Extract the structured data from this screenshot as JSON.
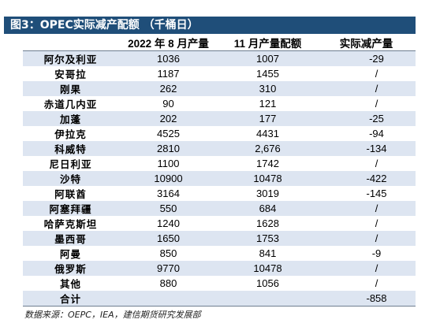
{
  "title": "图3：OPEC实际减产配额 （千桶日）",
  "table": {
    "headers": [
      "",
      "2022 年 8 月产量",
      "11 月产量配额",
      "实际减产量"
    ],
    "rows": [
      {
        "country": "阿尔及利亚",
        "aug2022": "1036",
        "nov_quota": "1007",
        "actual_cut": "-29"
      },
      {
        "country": "安哥拉",
        "aug2022": "1187",
        "nov_quota": "1455",
        "actual_cut": "/"
      },
      {
        "country": "刚果",
        "aug2022": "262",
        "nov_quota": "310",
        "actual_cut": "/"
      },
      {
        "country": "赤道几内亚",
        "aug2022": "90",
        "nov_quota": "121",
        "actual_cut": "/"
      },
      {
        "country": "加蓬",
        "aug2022": "202",
        "nov_quota": "177",
        "actual_cut": "-25"
      },
      {
        "country": "伊拉克",
        "aug2022": "4525",
        "nov_quota": "4431",
        "actual_cut": "-94"
      },
      {
        "country": "科威特",
        "aug2022": "2810",
        "nov_quota": "2,676",
        "actual_cut": "-134"
      },
      {
        "country": "尼日利亚",
        "aug2022": "1100",
        "nov_quota": "1742",
        "actual_cut": "/"
      },
      {
        "country": "沙特",
        "aug2022": "10900",
        "nov_quota": "10478",
        "actual_cut": "-422"
      },
      {
        "country": "阿联酋",
        "aug2022": "3164",
        "nov_quota": "3019",
        "actual_cut": "-145"
      },
      {
        "country": "阿塞拜疆",
        "aug2022": "550",
        "nov_quota": "684",
        "actual_cut": "/"
      },
      {
        "country": "哈萨克斯坦",
        "aug2022": "1240",
        "nov_quota": "1628",
        "actual_cut": "/"
      },
      {
        "country": "墨西哥",
        "aug2022": "1650",
        "nov_quota": "1753",
        "actual_cut": "/"
      },
      {
        "country": "阿曼",
        "aug2022": "850",
        "nov_quota": "841",
        "actual_cut": "-9"
      },
      {
        "country": "俄罗斯",
        "aug2022": "9770",
        "nov_quota": "10478",
        "actual_cut": "/"
      },
      {
        "country": "其他",
        "aug2022": "880",
        "nov_quota": "1056",
        "actual_cut": "/"
      },
      {
        "country": "合计",
        "aug2022": "",
        "nov_quota": "",
        "actual_cut": "-858"
      }
    ]
  },
  "source": "数据来源：OEPC，IEA，建信期货研究发展部",
  "colors": {
    "title_bg": "#1f4e79",
    "stripe": "#dde5f1"
  }
}
